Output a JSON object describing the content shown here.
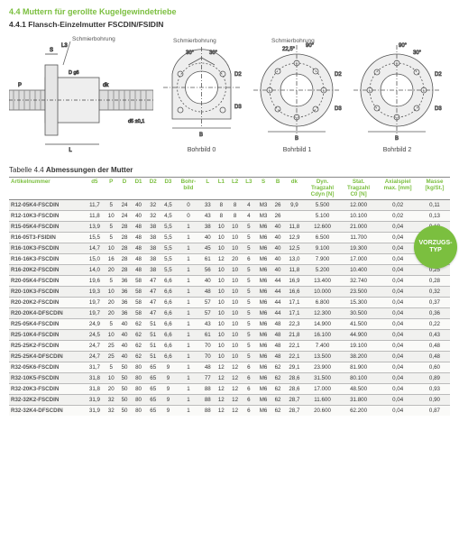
{
  "headings": {
    "h1": "4.4 Muttern für gerollte Kugelgewindetriebe",
    "h2": "4.4.1 Flansch-Einzelmutter FSCDIN/FSIDIN"
  },
  "diagram": {
    "schmier": "Schmierbohrung",
    "bohrbild0": "Bohrbild 0",
    "bohrbild1": "Bohrbild 1",
    "bohrbild2": "Bohrbild 2",
    "angles": {
      "a30": "30°",
      "a22_5": "22,5°",
      "a90": "90°"
    },
    "dims": {
      "L": "L",
      "L3": "L3",
      "S": "S",
      "P": "P",
      "D1": "D1",
      "D": "D",
      "D2": "D2",
      "D3": "D3",
      "dk": "dk",
      "d5": "d5 ±0,1",
      "B": "B",
      "g6": "D g6"
    }
  },
  "badge": {
    "line1": "VORZUGS-",
    "line2": "TYP"
  },
  "table": {
    "caption_prefix": "Tabelle 4.4 ",
    "caption_bold": "Abmessungen der Mutter",
    "columns": [
      "Artikelnummer",
      "d5",
      "P",
      "D",
      "D1",
      "D2",
      "D3",
      "Bohr-\nbild",
      "L",
      "L1",
      "L2",
      "L3",
      "S",
      "B",
      "dk",
      "Dyn.\nTragzahl\nCdyn [N]",
      "Stat.\nTragzahl\nC0 [N]",
      "Axialspiel\nmax. [mm]",
      "Masse\n[kg/St.]"
    ],
    "rows": [
      [
        "R12-05K4-FSCDIN",
        "11,7",
        "5",
        "24",
        "40",
        "32",
        "4,5",
        "0",
        "33",
        "8",
        "8",
        "4",
        "M3",
        "26",
        "9,9",
        "5.500",
        "12.000",
        "0,02",
        "0,11"
      ],
      [
        "R12-10K3-FSCDIN",
        "11,8",
        "10",
        "24",
        "40",
        "32",
        "4,5",
        "0",
        "43",
        "8",
        "8",
        "4",
        "M3",
        "26",
        "",
        "5.100",
        "10.100",
        "0,02",
        "0,13"
      ],
      [
        "R15-05K4-FSCDIN",
        "13,9",
        "5",
        "28",
        "48",
        "38",
        "5,5",
        "1",
        "38",
        "10",
        "10",
        "5",
        "M6",
        "40",
        "11,8",
        "12.600",
        "21.000",
        "0,04",
        "0,18"
      ],
      [
        "R16-05T3-FSIDIN",
        "15,5",
        "5",
        "28",
        "48",
        "38",
        "5,5",
        "1",
        "40",
        "10",
        "10",
        "5",
        "M6",
        "40",
        "12,9",
        "6.500",
        "11.700",
        "0,04",
        "0,18"
      ],
      [
        "R16-10K3-FSCDIN",
        "14,7",
        "10",
        "28",
        "48",
        "38",
        "5,5",
        "1",
        "45",
        "10",
        "10",
        "5",
        "M6",
        "40",
        "12,5",
        "9.100",
        "19.300",
        "0,04",
        "0,19"
      ],
      [
        "R16-16K3-FSCDIN",
        "15,0",
        "16",
        "28",
        "48",
        "38",
        "5,5",
        "1",
        "61",
        "12",
        "20",
        "6",
        "M6",
        "40",
        "13,0",
        "7.900",
        "17.000",
        "0,04",
        "0,26"
      ],
      [
        "R16-20K2-FSCDIN",
        "14,0",
        "20",
        "28",
        "48",
        "38",
        "5,5",
        "1",
        "56",
        "10",
        "10",
        "5",
        "M6",
        "40",
        "11,8",
        "5.200",
        "10.400",
        "0,04",
        "0,25"
      ],
      [
        "R20-05K4-FSCDIN",
        "19,6",
        "5",
        "36",
        "58",
        "47",
        "6,6",
        "1",
        "40",
        "10",
        "10",
        "5",
        "M6",
        "44",
        "16,9",
        "13.400",
        "32.740",
        "0,04",
        "0,28"
      ],
      [
        "R20-10K3-FSCDIN",
        "19,3",
        "10",
        "36",
        "58",
        "47",
        "6,6",
        "1",
        "48",
        "10",
        "10",
        "5",
        "M6",
        "44",
        "16,6",
        "10.000",
        "23.500",
        "0,04",
        "0,32"
      ],
      [
        "R20-20K2-FSCDIN",
        "19,7",
        "20",
        "36",
        "58",
        "47",
        "6,6",
        "1",
        "57",
        "10",
        "10",
        "5",
        "M6",
        "44",
        "17,1",
        "6.800",
        "15.300",
        "0,04",
        "0,37"
      ],
      [
        "R20-20K4-DFSCDIN",
        "19,7",
        "20",
        "36",
        "58",
        "47",
        "6,6",
        "1",
        "57",
        "10",
        "10",
        "5",
        "M6",
        "44",
        "17,1",
        "12.300",
        "30.500",
        "0,04",
        "0,36"
      ],
      [
        "R25-05K4-FSCDIN",
        "24,9",
        "5",
        "40",
        "62",
        "51",
        "6,6",
        "1",
        "43",
        "10",
        "10",
        "5",
        "M6",
        "48",
        "22,3",
        "14.900",
        "41.500",
        "0,04",
        "0,22"
      ],
      [
        "R25-10K4-FSCDIN",
        "24,5",
        "10",
        "40",
        "62",
        "51",
        "6,6",
        "1",
        "61",
        "10",
        "10",
        "5",
        "M6",
        "48",
        "21,8",
        "16.100",
        "44.900",
        "0,04",
        "0,43"
      ],
      [
        "R25-25K2-FSCDIN",
        "24,7",
        "25",
        "40",
        "62",
        "51",
        "6,6",
        "1",
        "70",
        "10",
        "10",
        "5",
        "M6",
        "48",
        "22,1",
        "7.400",
        "19.100",
        "0,04",
        "0,48"
      ],
      [
        "R25-25K4-DFSCDIN",
        "24,7",
        "25",
        "40",
        "62",
        "51",
        "6,6",
        "1",
        "70",
        "10",
        "10",
        "5",
        "M6",
        "48",
        "22,1",
        "13.500",
        "38.200",
        "0,04",
        "0,48"
      ],
      [
        "R32-05K6-FSCDIN",
        "31,7",
        "5",
        "50",
        "80",
        "65",
        "9",
        "1",
        "48",
        "12",
        "12",
        "6",
        "M6",
        "62",
        "29,1",
        "23.900",
        "81.900",
        "0,04",
        "0,60"
      ],
      [
        "R32-10K5-FSCDIN",
        "31,8",
        "10",
        "50",
        "80",
        "65",
        "9",
        "1",
        "77",
        "12",
        "12",
        "6",
        "M6",
        "62",
        "28,6",
        "31.500",
        "80.100",
        "0,04",
        "0,89"
      ],
      [
        "R32-20K3-FSCDIN",
        "31,8",
        "20",
        "50",
        "80",
        "65",
        "9",
        "1",
        "88",
        "12",
        "12",
        "6",
        "M6",
        "62",
        "28,6",
        "17.000",
        "48.500",
        "0,04",
        "0,93"
      ],
      [
        "R32-32K2-FSCDIN",
        "31,9",
        "32",
        "50",
        "80",
        "65",
        "9",
        "1",
        "88",
        "12",
        "12",
        "6",
        "M6",
        "62",
        "28,7",
        "11.600",
        "31.800",
        "0,04",
        "0,90"
      ],
      [
        "R32-32K4-DFSCDIN",
        "31,9",
        "32",
        "50",
        "80",
        "65",
        "9",
        "1",
        "88",
        "12",
        "12",
        "6",
        "M6",
        "62",
        "28,7",
        "20.600",
        "62.200",
        "0,04",
        "0,87"
      ]
    ]
  }
}
